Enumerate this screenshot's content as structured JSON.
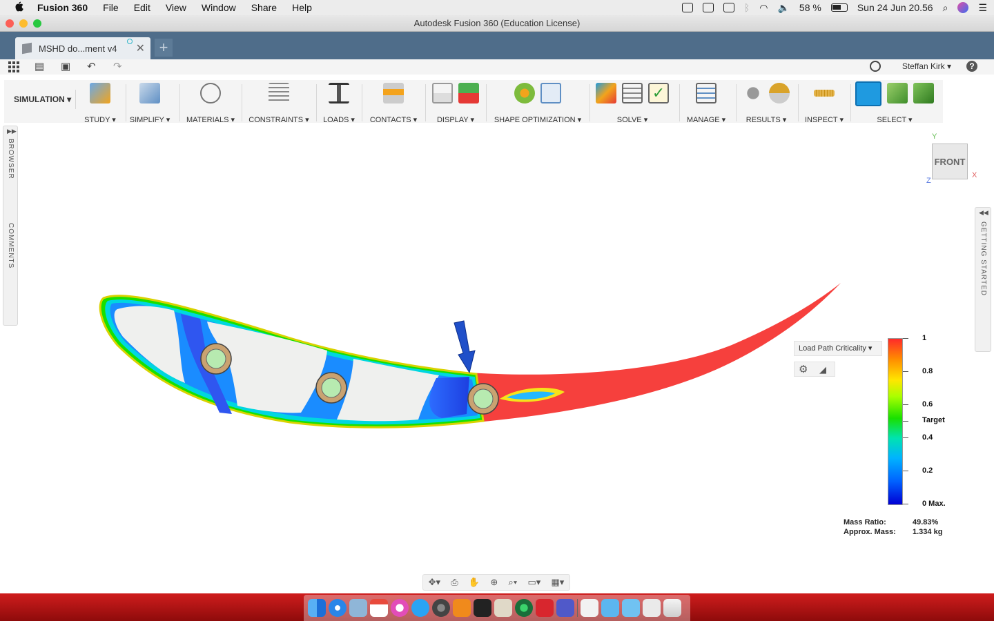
{
  "menubar": {
    "app": "Fusion 360",
    "items": [
      "File",
      "Edit",
      "View",
      "Window",
      "Share",
      "Help"
    ],
    "battery": "58 %",
    "datetime": "Sun 24 Jun  20.56"
  },
  "window": {
    "title": "Autodesk Fusion 360 (Education License)"
  },
  "tabs": {
    "active": "MSHD do...ment v4",
    "new_tab": "+"
  },
  "qat": {
    "user": "Steffan Kirk ▾",
    "help": "?"
  },
  "ribbon": {
    "workspace": "SIMULATION ▾",
    "groups": [
      "STUDY ▾",
      "SIMPLIFY ▾",
      "MATERIALS ▾",
      "CONSTRAINTS ▾",
      "LOADS ▾",
      "CONTACTS ▾",
      "DISPLAY ▾",
      "SHAPE OPTIMIZATION ▾",
      "SOLVE ▾",
      "MANAGE ▾",
      "RESULTS ▾",
      "INSPECT ▾",
      "SELECT ▾"
    ]
  },
  "panels": {
    "browser": "BROWSER",
    "comments": "COMMENTS",
    "getting_started": "GETTING STARTED"
  },
  "viewcube": {
    "face": "FRONT",
    "axis_y": "Y",
    "axis_x": "X",
    "axis_z": "Z"
  },
  "legend": {
    "dropdown": "Load Path Criticality ▾",
    "ticks": [
      "1",
      "0.8",
      "0.6",
      "Target",
      "0.4",
      "0.2",
      "0 Max."
    ],
    "mass_ratio_label": "Mass Ratio:",
    "mass_ratio_value": "49.83%",
    "approx_mass_label": "Approx. Mass:",
    "approx_mass_value": "1.334 kg"
  },
  "colors": {
    "accent": "#1f9ae0",
    "tabbar": "#4f6d8a",
    "dock": "#b31414"
  }
}
